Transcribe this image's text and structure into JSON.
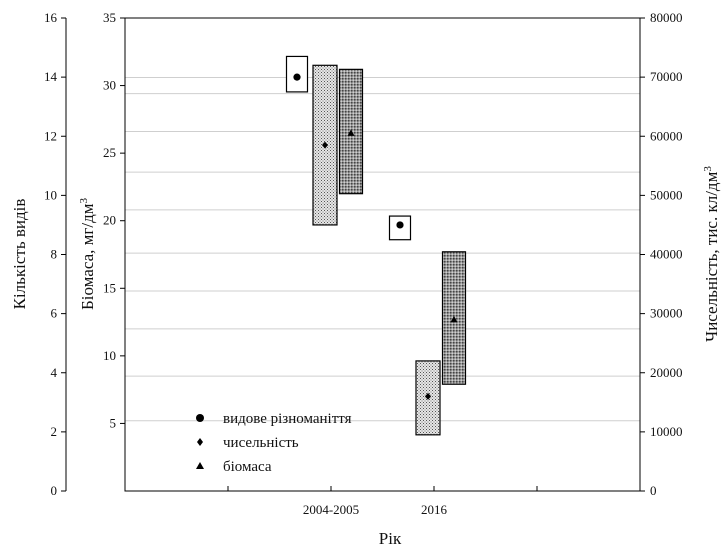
{
  "chart_data": {
    "type": "range-box",
    "categories": [
      "2004-2005",
      "2016"
    ],
    "xlabel": "Рік",
    "axes": {
      "species": {
        "label": "Кількість видів",
        "ticks": [
          "0",
          "2",
          "4",
          "6",
          "8",
          "10",
          "12",
          "14",
          "16"
        ],
        "ylim": [
          0,
          16
        ]
      },
      "biomass": {
        "label": "Біомаса, мг/дм",
        "label_sup": "3",
        "ticks": [
          "5",
          "10",
          "15",
          "20",
          "25",
          "30",
          "35"
        ],
        "ylim": [
          0,
          35
        ]
      },
      "abundance": {
        "label": "Чисельність, тис. кл/дм",
        "label_sup": "3",
        "ticks": [
          "0",
          "10000",
          "20000",
          "30000",
          "40000",
          "50000",
          "60000",
          "70000",
          "80000"
        ],
        "ylim": [
          0,
          80000
        ]
      }
    },
    "series": [
      {
        "name": "видове різноманіття",
        "marker": "circle",
        "axis": "species",
        "fill": "white",
        "points": [
          {
            "category": "2004-2005",
            "mean": 14,
            "min": 13.5,
            "max": 14.7
          },
          {
            "category": "2016",
            "mean": 9,
            "min": 8.5,
            "max": 9.3
          }
        ]
      },
      {
        "name": "чисельність",
        "marker": "diamond",
        "axis": "abundance",
        "fill": "dots",
        "points": [
          {
            "category": "2004-2005",
            "mean": 58500,
            "min": 45000,
            "max": 72000
          },
          {
            "category": "2016",
            "mean": 16000,
            "min": 9500,
            "max": 22000
          }
        ]
      },
      {
        "name": "біомаса",
        "marker": "triangle",
        "axis": "biomass",
        "fill": "dense",
        "points": [
          {
            "category": "2004-2005",
            "mean": 26.5,
            "min": 22,
            "max": 31.2
          },
          {
            "category": "2016",
            "mean": 12.7,
            "min": 7.9,
            "max": 17.7
          }
        ]
      }
    ],
    "gridlines_biomass": [
      5.2,
      8.5,
      12.0,
      14.8,
      17.6,
      20.8,
      23.6,
      26.6,
      29.4,
      30.6
    ]
  }
}
